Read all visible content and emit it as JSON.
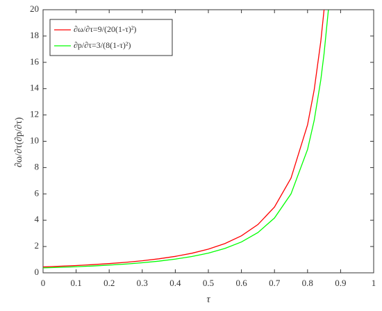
{
  "chart_data": {
    "type": "line",
    "x_label": "τ",
    "y_label": "∂ω/∂τ(∂p/∂τ)",
    "x": [
      0,
      0.05,
      0.1,
      0.15,
      0.2,
      0.25,
      0.3,
      0.35,
      0.4,
      0.45,
      0.5,
      0.55,
      0.6,
      0.65,
      0.7,
      0.75,
      0.8,
      0.82,
      0.84,
      0.85,
      0.863
    ],
    "series": [
      {
        "name": "∂ω/∂τ=9/(20(1-τ)²)",
        "color": "#ff0000",
        "values": [
          0.45,
          0.499,
          0.556,
          0.623,
          0.703,
          0.8,
          0.918,
          1.065,
          1.25,
          1.488,
          1.8,
          2.222,
          2.813,
          3.673,
          5,
          7.2,
          11.25,
          13.889,
          17.578,
          20,
          null
        ]
      },
      {
        "name": "∂p/∂τ=3/(8(1-τ)²)",
        "color": "#00ff00",
        "values": [
          0.375,
          0.416,
          0.463,
          0.519,
          0.586,
          0.667,
          0.765,
          0.888,
          1.042,
          1.24,
          1.5,
          1.852,
          2.344,
          3.061,
          4.167,
          6,
          9.375,
          11.574,
          14.648,
          16.667,
          19.98
        ]
      }
    ],
    "xlim": [
      0,
      1
    ],
    "ylim": [
      0,
      20
    ],
    "xticks": [
      0,
      0.1,
      0.2,
      0.3,
      0.4,
      0.5,
      0.6,
      0.7,
      0.8,
      0.9,
      1
    ],
    "yticks": [
      0,
      2,
      4,
      6,
      8,
      10,
      12,
      14,
      16,
      18,
      20
    ],
    "grid": false,
    "legend": "upper-left"
  }
}
